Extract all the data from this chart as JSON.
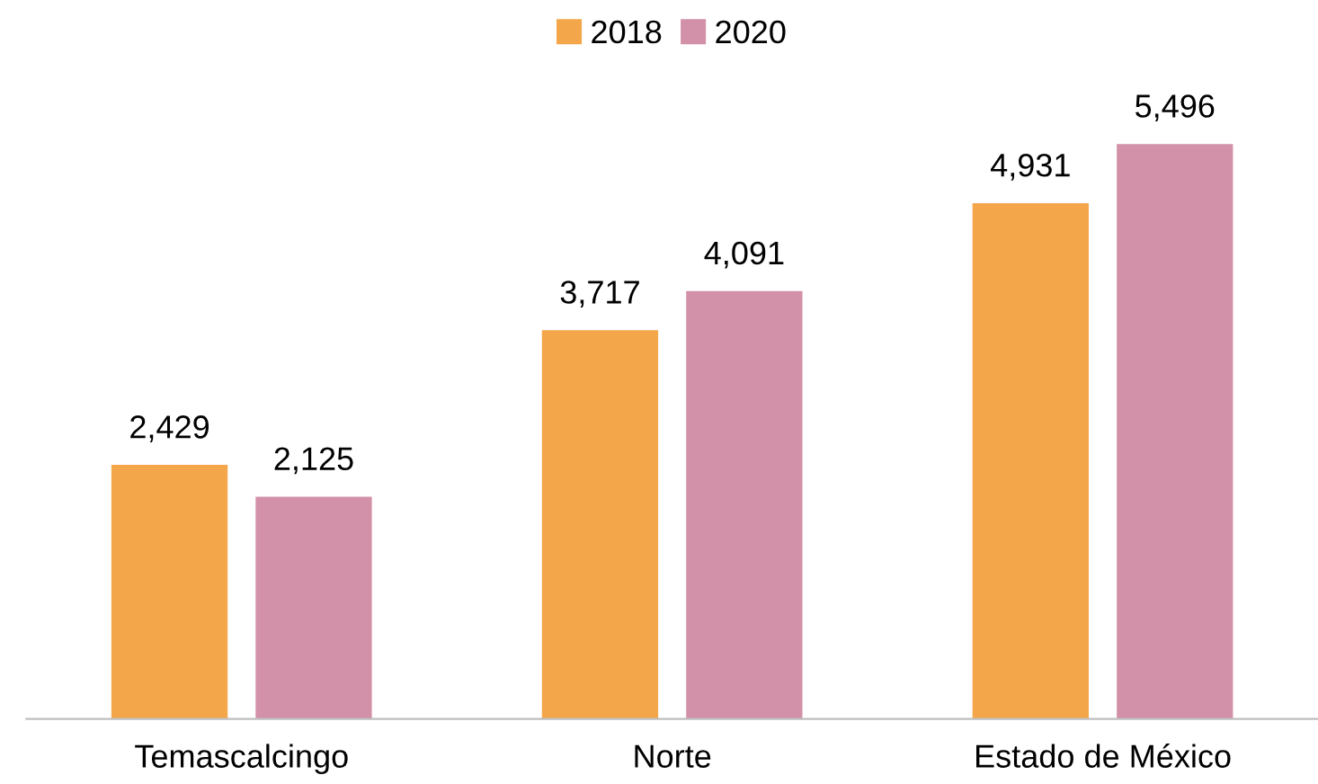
{
  "chart_data": {
    "type": "bar",
    "categories": [
      "Temascalcingo",
      "Norte",
      "Estado de México"
    ],
    "series": [
      {
        "name": "2018",
        "color": "#f4a64a",
        "values": [
          2429,
          3717,
          4931
        ],
        "value_labels": [
          "2,429",
          "3,717",
          "4,931"
        ]
      },
      {
        "name": "2020",
        "color": "#d291a8",
        "values": [
          2125,
          4091,
          5496
        ],
        "value_labels": [
          "2,125",
          "4,091",
          "5,496"
        ]
      }
    ],
    "legend": "top",
    "tick_labels": "x"
  }
}
